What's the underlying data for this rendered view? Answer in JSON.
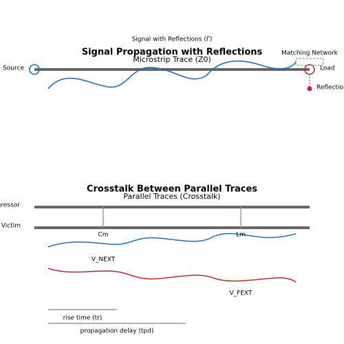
{
  "reflection": {
    "signal_label": "Signal with Reflections (Γ)",
    "title": "Signal Propagation with Reflections",
    "trace_label": "Microstrip Trace (Z0)",
    "matching_label": "Matching Network",
    "source_label": "Source",
    "load_label": "Load",
    "reflection_label": "Reflection"
  },
  "crosstalk": {
    "title": "Crosstalk Between Parallel Traces",
    "trace_label": "Parallel Traces (Crosstalk)",
    "aggressor_label": "Aggressor",
    "victim_label": "Victim",
    "cm_label": "Cm",
    "lm_label": "Lm",
    "next_label": "V_NEXT",
    "fext_label": "V_FEXT",
    "rise_label": "rise time (tr)",
    "delay_label": "propagation delay (tpd)"
  }
}
